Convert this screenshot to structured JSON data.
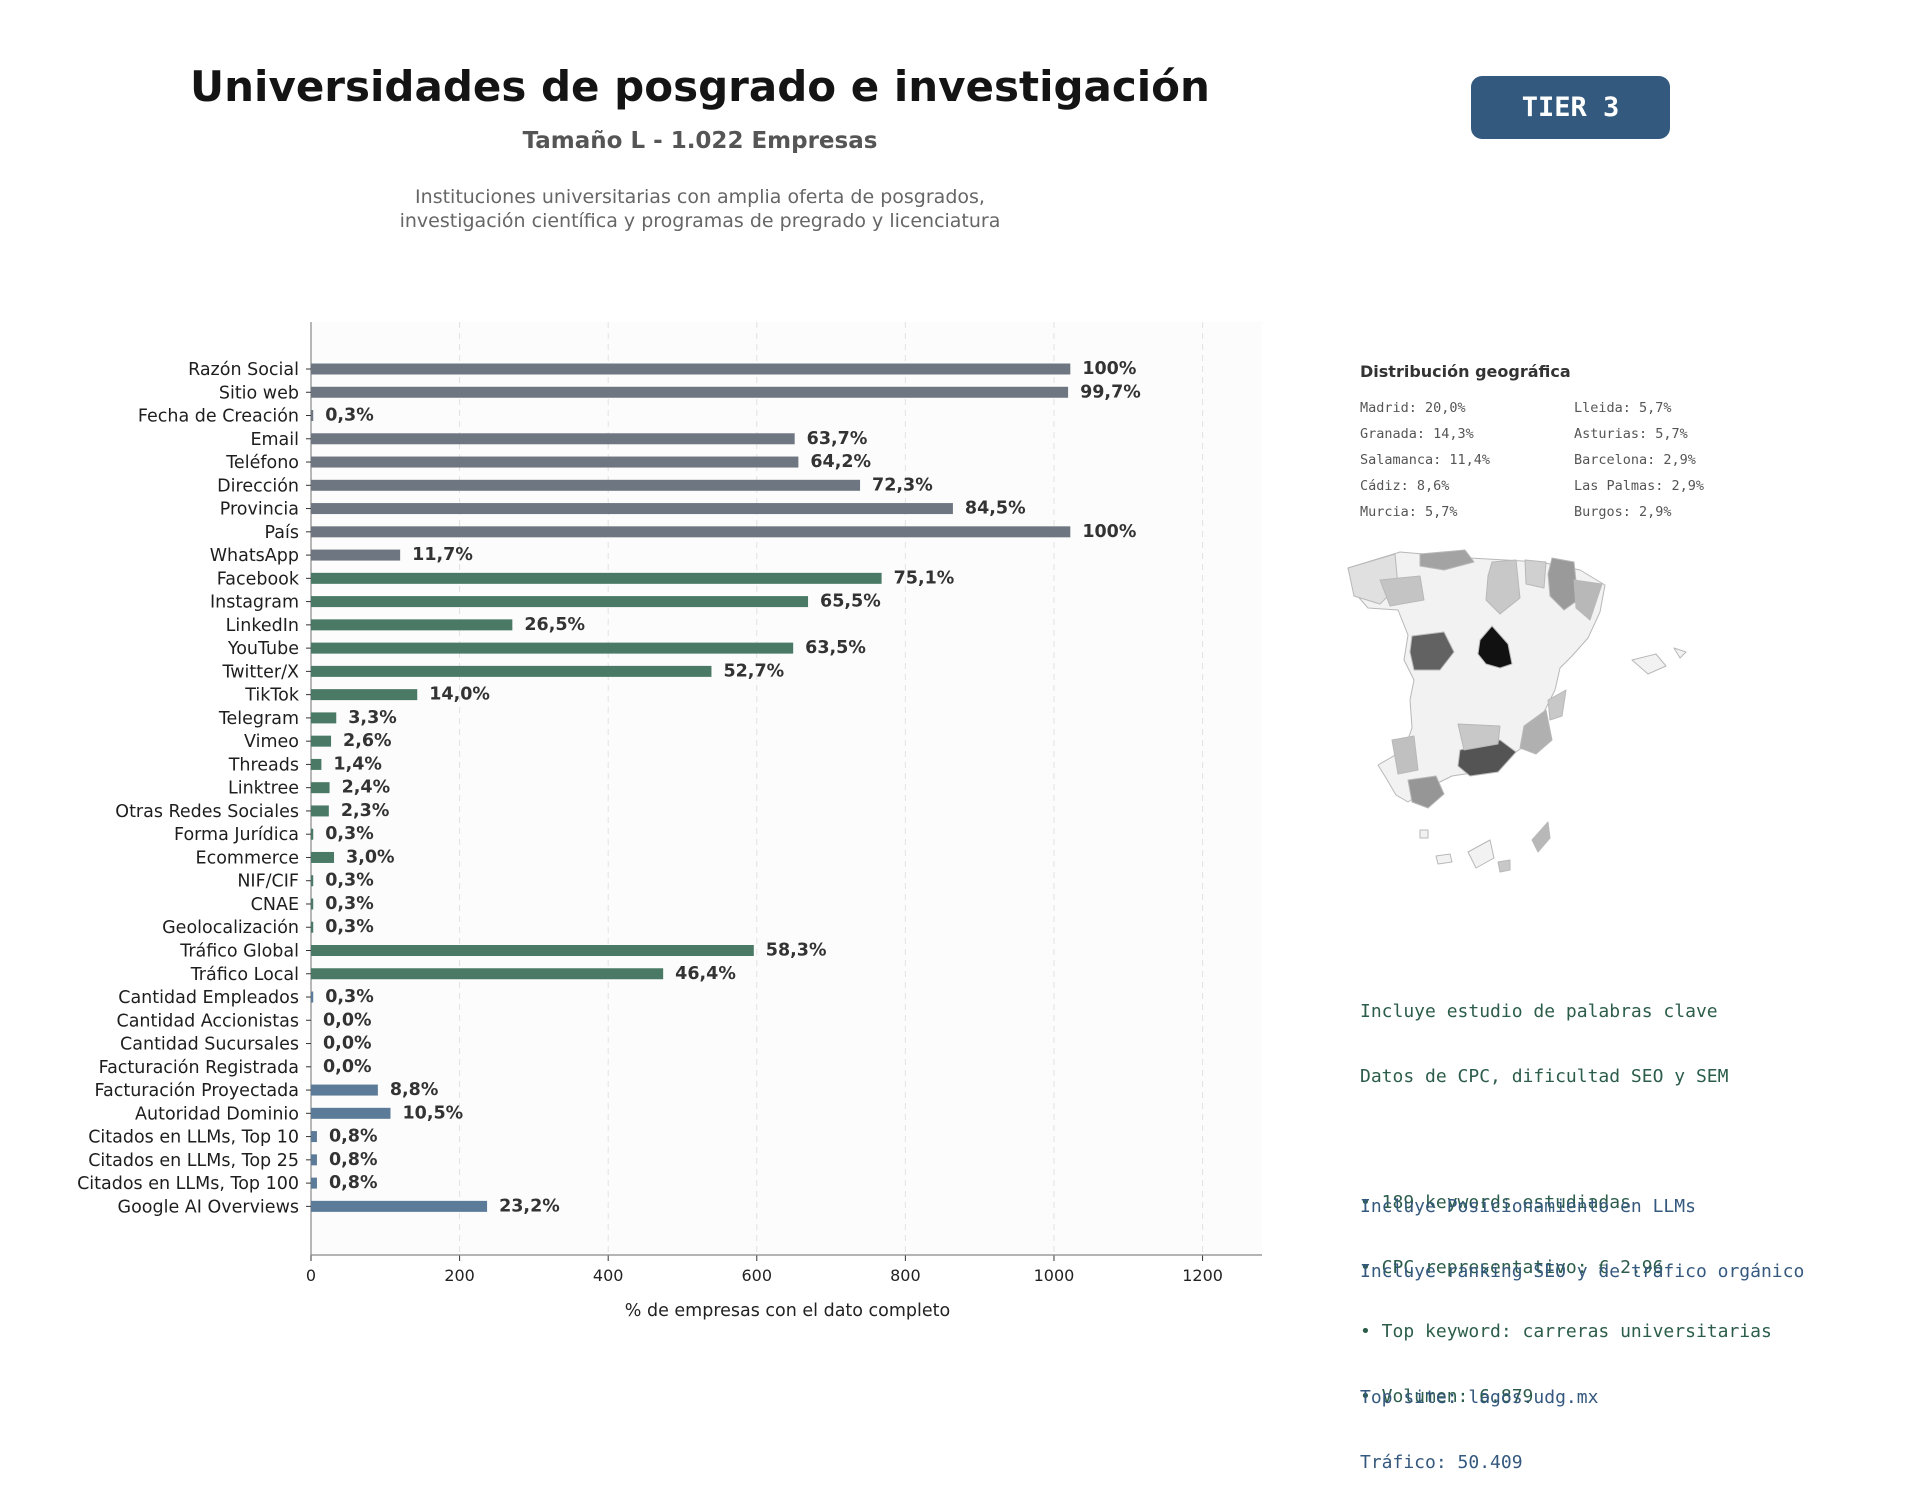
{
  "header": {
    "title": "Universidades de posgrado e investigación",
    "subtitle": "Tamaño L - 1.022 Empresas",
    "description_line1": "Instituciones universitarias con amplia oferta de posgrados,",
    "description_line2": "investigación científica y programas de pregrado y licenciatura",
    "tier": "TIER 3"
  },
  "chart_data": {
    "type": "bar",
    "orientation": "horizontal",
    "title": "",
    "xlabel": "% de empresas con el dato completo",
    "ylabel": "",
    "xlim": [
      0,
      1280
    ],
    "xticks": [
      0,
      200,
      400,
      600,
      800,
      1000,
      1200
    ],
    "grid": "vertical dashed",
    "categories": [
      "Razón Social",
      "Sitio web",
      "Fecha de Creación",
      "Email",
      "Teléfono",
      "Dirección",
      "Provincia",
      "País",
      "WhatsApp",
      "Facebook",
      "Instagram",
      "LinkedIn",
      "YouTube",
      "Twitter/X",
      "TikTok",
      "Telegram",
      "Vimeo",
      "Threads",
      "Linktree",
      "Otras Redes Sociales",
      "Forma Jurídica",
      "Ecommerce",
      "NIF/CIF",
      "CNAE",
      "Geolocalización",
      "Tráfico Global",
      "Tráfico Local",
      "Cantidad Empleados",
      "Cantidad Accionistas",
      "Cantidad Sucursales",
      "Facturación Registrada",
      "Facturación Proyectada",
      "Autoridad Dominio",
      "Citados en LLMs, Top 10",
      "Citados en LLMs, Top 25",
      "Citados en LLMs, Top 100",
      "Google AI Overviews"
    ],
    "values": [
      1022,
      1019,
      3,
      651,
      656,
      739,
      864,
      1022,
      120,
      768,
      669,
      271,
      649,
      539,
      143,
      34,
      27,
      14,
      25,
      24,
      3,
      31,
      3,
      3,
      3,
      596,
      474,
      3,
      0,
      0,
      0,
      90,
      107,
      8,
      8,
      8,
      237
    ],
    "labels": [
      "100%",
      "99,7%",
      "0,3%",
      "63,7%",
      "64,2%",
      "72,3%",
      "84,5%",
      "100%",
      "11,7%",
      "75,1%",
      "65,5%",
      "26,5%",
      "63,5%",
      "52,7%",
      "14,0%",
      "3,3%",
      "2,6%",
      "1,4%",
      "2,4%",
      "2,3%",
      "0,3%",
      "3,0%",
      "0,3%",
      "0,3%",
      "0,3%",
      "58,3%",
      "46,4%",
      "0,3%",
      "0,0%",
      "0,0%",
      "0,0%",
      "8,8%",
      "10,5%",
      "0,8%",
      "0,8%",
      "0,8%",
      "23,2%"
    ],
    "groups": [
      "gray",
      "gray",
      "gray",
      "gray",
      "gray",
      "gray",
      "gray",
      "gray",
      "gray",
      "green",
      "green",
      "green",
      "green",
      "green",
      "green",
      "green",
      "green",
      "green",
      "green",
      "green",
      "green",
      "green",
      "green",
      "green",
      "green",
      "green",
      "green",
      "blue",
      "blue",
      "blue",
      "blue",
      "blue",
      "blue",
      "blue",
      "blue",
      "blue",
      "blue"
    ],
    "colors": {
      "gray": "#6e7781",
      "green": "#4a7a66",
      "blue": "#5b7b98"
    }
  },
  "geo": {
    "title": "Distribución geográfica",
    "col1": [
      "Madrid: 20,0%",
      "Granada: 14,3%",
      "Salamanca: 11,4%",
      "Cádiz: 8,6%",
      "Murcia: 5,7%"
    ],
    "col2": [
      "Lleida: 5,7%",
      "Asturias: 5,7%",
      "Barcelona: 2,9%",
      "Las Palmas: 2,9%",
      "Burgos: 2,9%"
    ]
  },
  "keywords": {
    "line1": "Incluye estudio de palabras clave",
    "line2": "Datos de CPC, dificultad SEO y SEM",
    "bullet1": "• 189 keywords estudiadas",
    "bullet2": "• CPC representativo: € 2.96",
    "bullet3": "• Top keyword: carreras universitarias",
    "bullet4": "• Volumen: 6.879"
  },
  "llm": {
    "line1": "Incluye Posicionamiento en LLMs",
    "line2": "Incluye ranking SEO y de tráfico orgánico",
    "line3": "Top site: lagos.udg.mx",
    "line4": "Tráfico: 50.409"
  }
}
